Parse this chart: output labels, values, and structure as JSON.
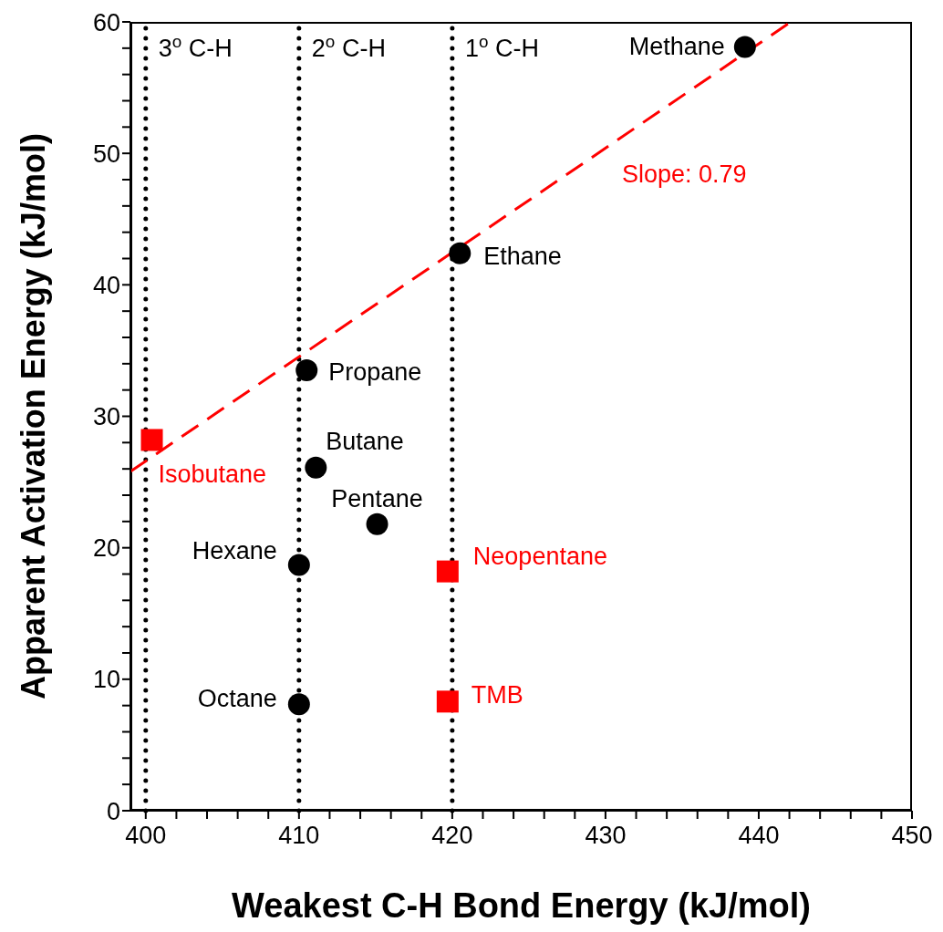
{
  "chart_data": {
    "type": "scatter",
    "xlabel": "Weakest C-H Bond Energy (kJ/mol)",
    "ylabel": "Apparent Activation Energy (kJ/mol)",
    "xlim": [
      399,
      450
    ],
    "ylim": [
      0,
      60
    ],
    "xticks": [
      400,
      {
        "value": 402,
        "label": null
      },
      {
        "value": 404,
        "label": null
      },
      {
        "value": 406,
        "label": null
      },
      {
        "value": 408,
        "label": null
      },
      410,
      {
        "value": 412,
        "label": null
      },
      {
        "value": 414,
        "label": null
      },
      {
        "value": 416,
        "label": null
      },
      {
        "value": 418,
        "label": null
      },
      420,
      {
        "value": 422,
        "label": null
      },
      {
        "value": 424,
        "label": null
      },
      {
        "value": 426,
        "label": null
      },
      {
        "value": 428,
        "label": null
      },
      430,
      {
        "value": 432,
        "label": null
      },
      {
        "value": 434,
        "label": null
      },
      {
        "value": 436,
        "label": null
      },
      {
        "value": 438,
        "label": null
      },
      440,
      {
        "value": 442,
        "label": null
      },
      {
        "value": 444,
        "label": null
      },
      {
        "value": 446,
        "label": null
      },
      {
        "value": 448,
        "label": null
      },
      450
    ],
    "yticks": [
      0,
      {
        "value": 2,
        "label": null
      },
      {
        "value": 4,
        "label": null
      },
      {
        "value": 6,
        "label": null
      },
      {
        "value": 8,
        "label": null
      },
      10,
      {
        "value": 12,
        "label": null
      },
      {
        "value": 14,
        "label": null
      },
      {
        "value": 16,
        "label": null
      },
      {
        "value": 18,
        "label": null
      },
      20,
      {
        "value": 22,
        "label": null
      },
      {
        "value": 24,
        "label": null
      },
      {
        "value": 26,
        "label": null
      },
      {
        "value": 28,
        "label": null
      },
      30,
      {
        "value": 32,
        "label": null
      },
      {
        "value": 34,
        "label": null
      },
      {
        "value": 36,
        "label": null
      },
      {
        "value": 38,
        "label": null
      },
      40,
      {
        "value": 42,
        "label": null
      },
      {
        "value": 44,
        "label": null
      },
      {
        "value": 46,
        "label": null
      },
      {
        "value": 48,
        "label": null
      },
      50,
      {
        "value": 52,
        "label": null
      },
      {
        "value": 54,
        "label": null
      },
      {
        "value": 56,
        "label": null
      },
      {
        "value": 58,
        "label": null
      },
      60
    ],
    "series": [
      {
        "type": "scatter",
        "marker": "circle",
        "color": "#000000",
        "x": [
          439.1,
          420.5,
          410.5,
          411.1,
          415.1,
          410,
          410
        ],
        "values": [
          58.1,
          42.4,
          33.5,
          26.1,
          21.8,
          18.7,
          8.1
        ]
      },
      {
        "type": "scatter",
        "marker": "square",
        "color": "#ff0000",
        "x": [
          400.4,
          419.7,
          419.7
        ],
        "values": [
          28.2,
          18.2,
          8.3
        ]
      },
      {
        "type": "line",
        "marker": "none",
        "line_style": "dashed",
        "color": "#ff0000",
        "x": [
          399,
          442.1
        ],
        "values": [
          25.8,
          60
        ]
      }
    ],
    "ref_lines": [
      {
        "axis": "x",
        "value": 400,
        "label": "3$^{o}$ C-H",
        "color": "#000000",
        "line_style": "dotted"
      },
      {
        "axis": "x",
        "value": 410,
        "label": "2$^{o}$ C-H",
        "color": "#000000",
        "line_style": "dotted"
      },
      {
        "axis": "x",
        "value": 420,
        "label": "1$^{o}$ C-H",
        "color": "#000000",
        "line_style": "dotted"
      }
    ],
    "annotations": [
      {
        "text": "Methane",
        "x": 439.1,
        "y": 58.1
      },
      {
        "text": "Ethane",
        "x": 420.5,
        "y": 42.4
      },
      {
        "text": "Propane",
        "x": 410.5,
        "y": 33.5
      },
      {
        "text": "Butane",
        "x": 411.1,
        "y": 26.1
      },
      {
        "text": "Pentane",
        "x": 415.1,
        "y": 21.8
      },
      {
        "text": "Hexane",
        "x": 410,
        "y": 18.7
      },
      {
        "text": "Octane",
        "x": 410,
        "y": 8.1
      },
      {
        "text": "Isobutane",
        "x": 400.4,
        "y": 28.2
      },
      {
        "text": "Neopentane",
        "x": 419.7,
        "y": 18.2
      },
      {
        "text": "TMB",
        "x": 419.7,
        "y": 8.3
      },
      "Slope: 0.79"
    ],
    "grid": false,
    "legend": false
  }
}
